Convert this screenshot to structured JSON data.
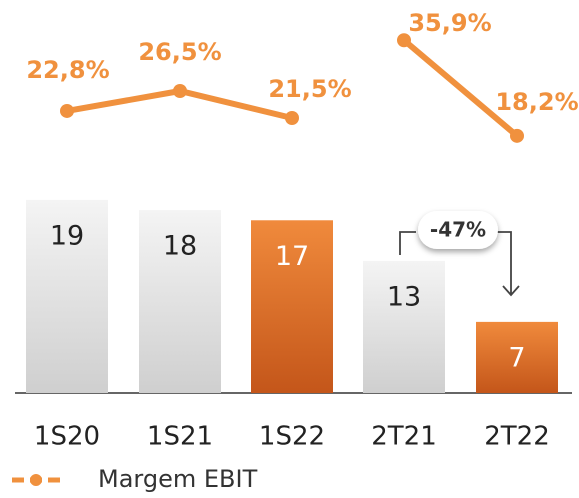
{
  "chart_data": {
    "type": "bar",
    "categories": [
      "1S20",
      "1S21",
      "1S22",
      "2T21",
      "2T22"
    ],
    "values": [
      19,
      18,
      17,
      13,
      7
    ],
    "colors": [
      "#e6e6e6",
      "#e6e6e6",
      "#e8732a",
      "#e6e6e6",
      "#e8732a"
    ],
    "line_series": {
      "name": "Margem EBIT",
      "color": "#f0913e",
      "values": [
        22.8,
        26.5,
        21.5,
        35.9,
        18.2
      ],
      "value_labels": [
        "22,8%",
        "26,5%",
        "21,5%",
        "35,9%",
        "18,2%"
      ]
    },
    "annotation": "-47%"
  }
}
